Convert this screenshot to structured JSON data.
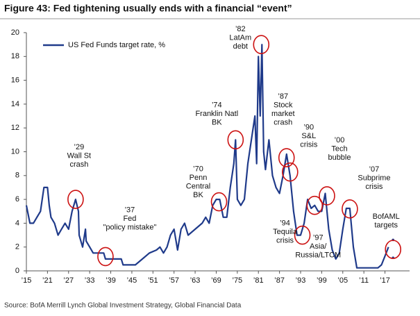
{
  "chart_data": {
    "type": "line",
    "title": "Figure 43: Fed tightening usually ends with a financial “event”",
    "source": "Source: BofA Merrill Lynch Global Investment Strategy, Global Financial Data",
    "legend": "top-left",
    "series": [
      {
        "name": "US Fed Funds target rate, %",
        "color": "#1f3a8a",
        "x": [
          1915,
          1916,
          1917,
          1918,
          1919,
          1920,
          1921,
          1921.5,
          1922,
          1923,
          1924,
          1925,
          1926,
          1927,
          1928,
          1929,
          1929.8,
          1930,
          1931,
          1931.8,
          1932,
          1933,
          1934,
          1935,
          1937,
          1937.5,
          1940,
          1942,
          1942.5,
          1946,
          1948,
          1950,
          1952,
          1953,
          1954,
          1955,
          1956,
          1957,
          1958,
          1959,
          1960,
          1961,
          1963,
          1965,
          1966,
          1967,
          1968,
          1969,
          1970,
          1971,
          1972,
          1973,
          1974,
          1974.5,
          1975,
          1976,
          1977,
          1978,
          1979,
          1980,
          1980.5,
          1981,
          1981.5,
          1982,
          1982.5,
          1983,
          1984,
          1985,
          1986,
          1987,
          1988,
          1989,
          1990,
          1991,
          1992,
          1993,
          1994,
          1995,
          1996,
          1997,
          1998,
          1999,
          2000,
          2001,
          2002,
          2003,
          2004,
          2005,
          2006,
          2007,
          2008,
          2009,
          2015,
          2016,
          2017,
          2018
        ],
        "values": [
          5.5,
          4,
          4,
          4.5,
          5,
          7,
          7,
          5.5,
          4.5,
          4,
          3,
          3.5,
          4,
          3.5,
          5,
          6,
          5,
          3,
          2,
          3.5,
          2.5,
          2,
          1.5,
          1.5,
          1.5,
          1,
          1,
          1,
          0.5,
          0.5,
          1,
          1.5,
          1.75,
          2,
          1.5,
          2,
          3,
          3.5,
          1.75,
          3.5,
          4,
          3,
          3.5,
          4,
          4.5,
          4,
          5.5,
          6,
          6,
          4.5,
          4.5,
          7,
          9,
          11,
          6,
          5.5,
          6,
          9,
          11,
          13,
          9,
          18,
          13,
          19,
          10,
          8.5,
          11,
          8,
          7,
          6.5,
          8,
          9.8,
          8,
          5,
          3,
          3,
          4,
          6,
          5.25,
          5.5,
          5,
          5,
          6.5,
          3.5,
          1.75,
          1,
          1.5,
          3.5,
          5.25,
          5.25,
          2,
          0.25,
          0.25,
          0.5,
          1.25,
          2
        ]
      }
    ],
    "target_points": {
      "x": [
        2019.3,
        2019.3
      ],
      "values": [
        2.6,
        1.1
      ]
    },
    "annotations": [
      {
        "lines": [
          "’29",
          "Wall St",
          "crash"
        ],
        "x": 1929,
        "y": 6
      },
      {
        "lines": [
          "’37",
          "Fed",
          "\"policy mistake\""
        ],
        "x": 1937.5,
        "y": 1.2
      },
      {
        "lines": [
          "’70",
          "Penn",
          "Central",
          "BK"
        ],
        "x": 1969.8,
        "y": 5.8
      },
      {
        "lines": [
          "’74",
          "Franklin Natl",
          "BK"
        ],
        "x": 1974.5,
        "y": 11
      },
      {
        "lines": [
          "’82",
          "LatAm",
          "debt"
        ],
        "x": 1981.8,
        "y": 19
      },
      {
        "lines": [
          "’87",
          "Stock",
          "market",
          "crash"
        ],
        "x": 1989,
        "y": 9.5
      },
      {
        "lines": [
          "’90",
          "S&L",
          "crisis"
        ],
        "x": 1990,
        "y": 8.3
      },
      {
        "lines": [
          "’94",
          "Tequila",
          "crisis"
        ],
        "x": 1993.5,
        "y": 3
      },
      {
        "lines": [
          "’97",
          "Asia/",
          "Russia/LTCM"
        ],
        "x": 1997,
        "y": 5.5
      },
      {
        "lines": [
          "’00",
          "Tech",
          "bubble"
        ],
        "x": 2000.5,
        "y": 6.3
      },
      {
        "lines": [
          "’07",
          "Subprime",
          "crisis"
        ],
        "x": 2007,
        "y": 5.2
      },
      {
        "lines": [
          "BofAML",
          "targets"
        ],
        "x": 2019.3,
        "y": 1.8
      }
    ],
    "xlim": [
      1915,
      2024
    ],
    "ylim": [
      0,
      20
    ],
    "yticks": [
      0,
      2,
      4,
      6,
      8,
      10,
      12,
      14,
      16,
      18,
      20
    ],
    "xticks": [
      {
        "value": 1915,
        "label": "’15"
      },
      {
        "value": 1921,
        "label": "’21"
      },
      {
        "value": 1927,
        "label": "’27"
      },
      {
        "value": 1933,
        "label": "’33"
      },
      {
        "value": 1939,
        "label": "’39"
      },
      {
        "value": 1945,
        "label": "’45"
      },
      {
        "value": 1951,
        "label": "’51"
      },
      {
        "value": 1957,
        "label": "’57"
      },
      {
        "value": 1963,
        "label": "’63"
      },
      {
        "value": 1969,
        "label": "’69"
      },
      {
        "value": 1975,
        "label": "’75"
      },
      {
        "value": 1981,
        "label": "’81"
      },
      {
        "value": 1987,
        "label": "’87"
      },
      {
        "value": 1993,
        "label": "’93"
      },
      {
        "value": 1999,
        "label": "’99"
      },
      {
        "value": 2005,
        "label": "’05"
      },
      {
        "value": 2011,
        "label": "’11"
      },
      {
        "value": 2017,
        "label": "’17"
      }
    ],
    "grid": false,
    "highlight_color": "#cc1111"
  }
}
